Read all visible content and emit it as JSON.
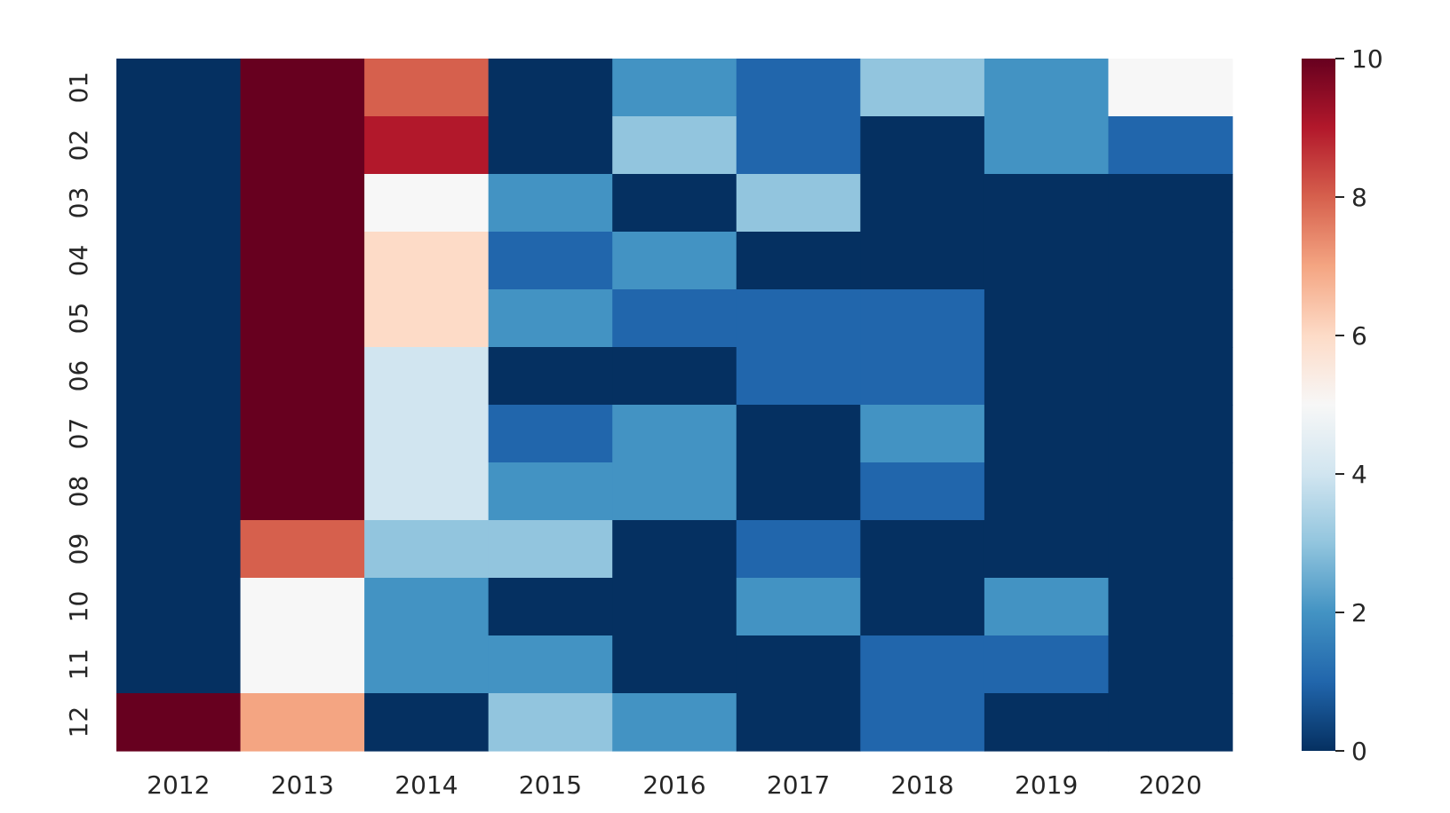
{
  "chart_data": {
    "type": "heatmap",
    "title": "",
    "xlabel": "",
    "ylabel": "",
    "x_categories": [
      "2012",
      "2013",
      "2014",
      "2015",
      "2016",
      "2017",
      "2018",
      "2019",
      "2020"
    ],
    "y_categories": [
      "01",
      "02",
      "03",
      "04",
      "05",
      "06",
      "07",
      "08",
      "09",
      "10",
      "11",
      "12"
    ],
    "values": [
      [
        0,
        10,
        8,
        0,
        2,
        1,
        3,
        2,
        5
      ],
      [
        0,
        10,
        9,
        0,
        3,
        1,
        0,
        2,
        1
      ],
      [
        0,
        10,
        5,
        2,
        0,
        3,
        0,
        0,
        0
      ],
      [
        0,
        10,
        6,
        1,
        2,
        0,
        0,
        0,
        0
      ],
      [
        0,
        10,
        6,
        2,
        1,
        1,
        1,
        0,
        0
      ],
      [
        0,
        10,
        4,
        0,
        0,
        1,
        1,
        0,
        0
      ],
      [
        0,
        10,
        4,
        1,
        2,
        0,
        2,
        0,
        0
      ],
      [
        0,
        10,
        4,
        2,
        2,
        0,
        1,
        0,
        0
      ],
      [
        0,
        8,
        3,
        3,
        0,
        1,
        0,
        0,
        0
      ],
      [
        0,
        5,
        2,
        0,
        0,
        2,
        0,
        2,
        0
      ],
      [
        0,
        5,
        2,
        2,
        0,
        0,
        1,
        1,
        0
      ],
      [
        10,
        7,
        0,
        3,
        2,
        0,
        1,
        0,
        0
      ]
    ],
    "value_range": [
      0,
      10
    ],
    "colorbar": {
      "ticks": [
        "0",
        "2",
        "4",
        "6",
        "8",
        "10"
      ],
      "position": "right"
    },
    "colormap": "RdBu_r",
    "grid": false,
    "legend": "none"
  }
}
